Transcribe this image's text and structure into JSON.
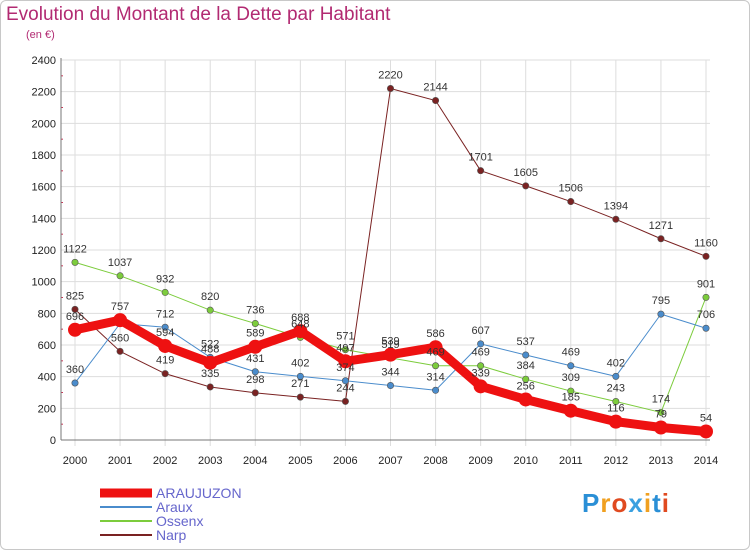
{
  "header": {
    "title": "Evolution du Montant de la Dette par Habitant",
    "subtitle": "(en €)"
  },
  "logo": {
    "text": "Proxiti",
    "colors": [
      "#2a8fd6",
      "#f0a020",
      "#e04a20",
      "#3aa0e0",
      "#f0a020",
      "#2a8fd6",
      "#e04a20"
    ]
  },
  "chart_data": {
    "type": "line",
    "title": "Evolution du Montant de la Dette par Habitant",
    "ylabel": "(en €)",
    "xlabel": "",
    "ylim": [
      0,
      2400
    ],
    "yticks": [
      0,
      200,
      400,
      600,
      800,
      1000,
      1200,
      1400,
      1600,
      1800,
      2000,
      2200,
      2400
    ],
    "x": [
      "2000",
      "2001",
      "2002",
      "2003",
      "2004",
      "2005",
      "2006",
      "2007",
      "2008",
      "2009",
      "2010",
      "2011",
      "2012",
      "2013",
      "2014"
    ],
    "grid": true,
    "legend": "bottom-left",
    "series": [
      {
        "name": "ARAUJUZON",
        "color": "#ee1111",
        "width": 9,
        "values": [
          696,
          757,
          594,
          488,
          589,
          688,
          497,
          539,
          586,
          339,
          256,
          185,
          116,
          79,
          54
        ],
        "labels": [
          "696",
          "757",
          "594",
          "488",
          "589",
          "688",
          "497",
          "539",
          "586",
          "339",
          "256",
          "185",
          "116",
          "79",
          "54"
        ]
      },
      {
        "name": "Araux",
        "color": "#4a8ccc",
        "width": 1,
        "values": [
          360,
          735,
          712,
          522,
          431,
          402,
          374,
          344,
          314,
          607,
          537,
          469,
          402,
          795,
          706
        ],
        "labels": [
          "360",
          "",
          "712",
          "522",
          "431",
          "402",
          "374",
          "344",
          "314",
          "607",
          "537",
          "469",
          "402",
          "795",
          "706"
        ]
      },
      {
        "name": "Ossenx",
        "color": "#7ccc3c",
        "width": 1,
        "values": [
          1122,
          1037,
          932,
          820,
          736,
          648,
          571,
          519,
          469,
          469,
          384,
          309,
          243,
          174,
          901
        ],
        "labels": [
          "1122",
          "1037",
          "932",
          "820",
          "736",
          "648",
          "571",
          "519",
          "469",
          "469",
          "384",
          "309",
          "243",
          "174",
          "901"
        ]
      },
      {
        "name": "Narp",
        "color": "#7a2222",
        "width": 1,
        "values": [
          825,
          560,
          419,
          335,
          298,
          271,
          244,
          2220,
          2144,
          1701,
          1605,
          1506,
          1394,
          1271,
          1160
        ],
        "labels": [
          "825",
          "560",
          "419",
          "335",
          "298",
          "271",
          "244",
          "2220",
          "2144",
          "1701",
          "1605",
          "1506",
          "1394",
          "1271",
          "1160"
        ],
        "gap_after_index": 6,
        "connector_from_index": 6
      }
    ]
  }
}
